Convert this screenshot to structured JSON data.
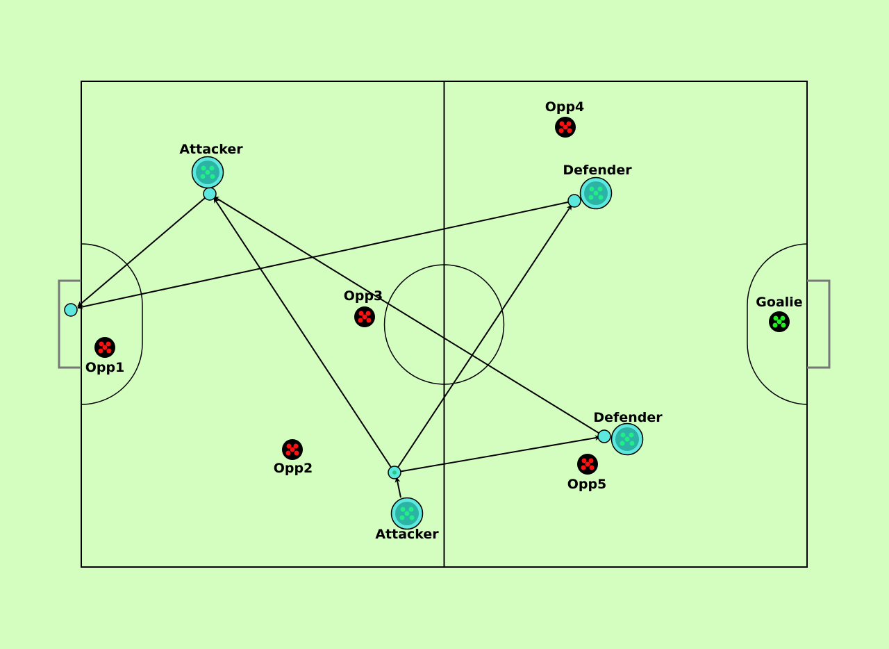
{
  "field_color": "#d4fdc0",
  "team_color": "#5ce8dc",
  "team_dot_color": "#22cc88",
  "opponent_color": "#ff0000",
  "goalie_color": "#22ee22",
  "players": {
    "attacker_top": "Attacker",
    "attacker_bottom": "Attacker",
    "defender_top": "Defender",
    "defender_bottom": "Defender",
    "goalie": "Goalie",
    "opp1": "Opp1",
    "opp2": "Opp2",
    "opp3": "Opp3",
    "opp4": "Opp4",
    "opp5": "Opp5"
  }
}
